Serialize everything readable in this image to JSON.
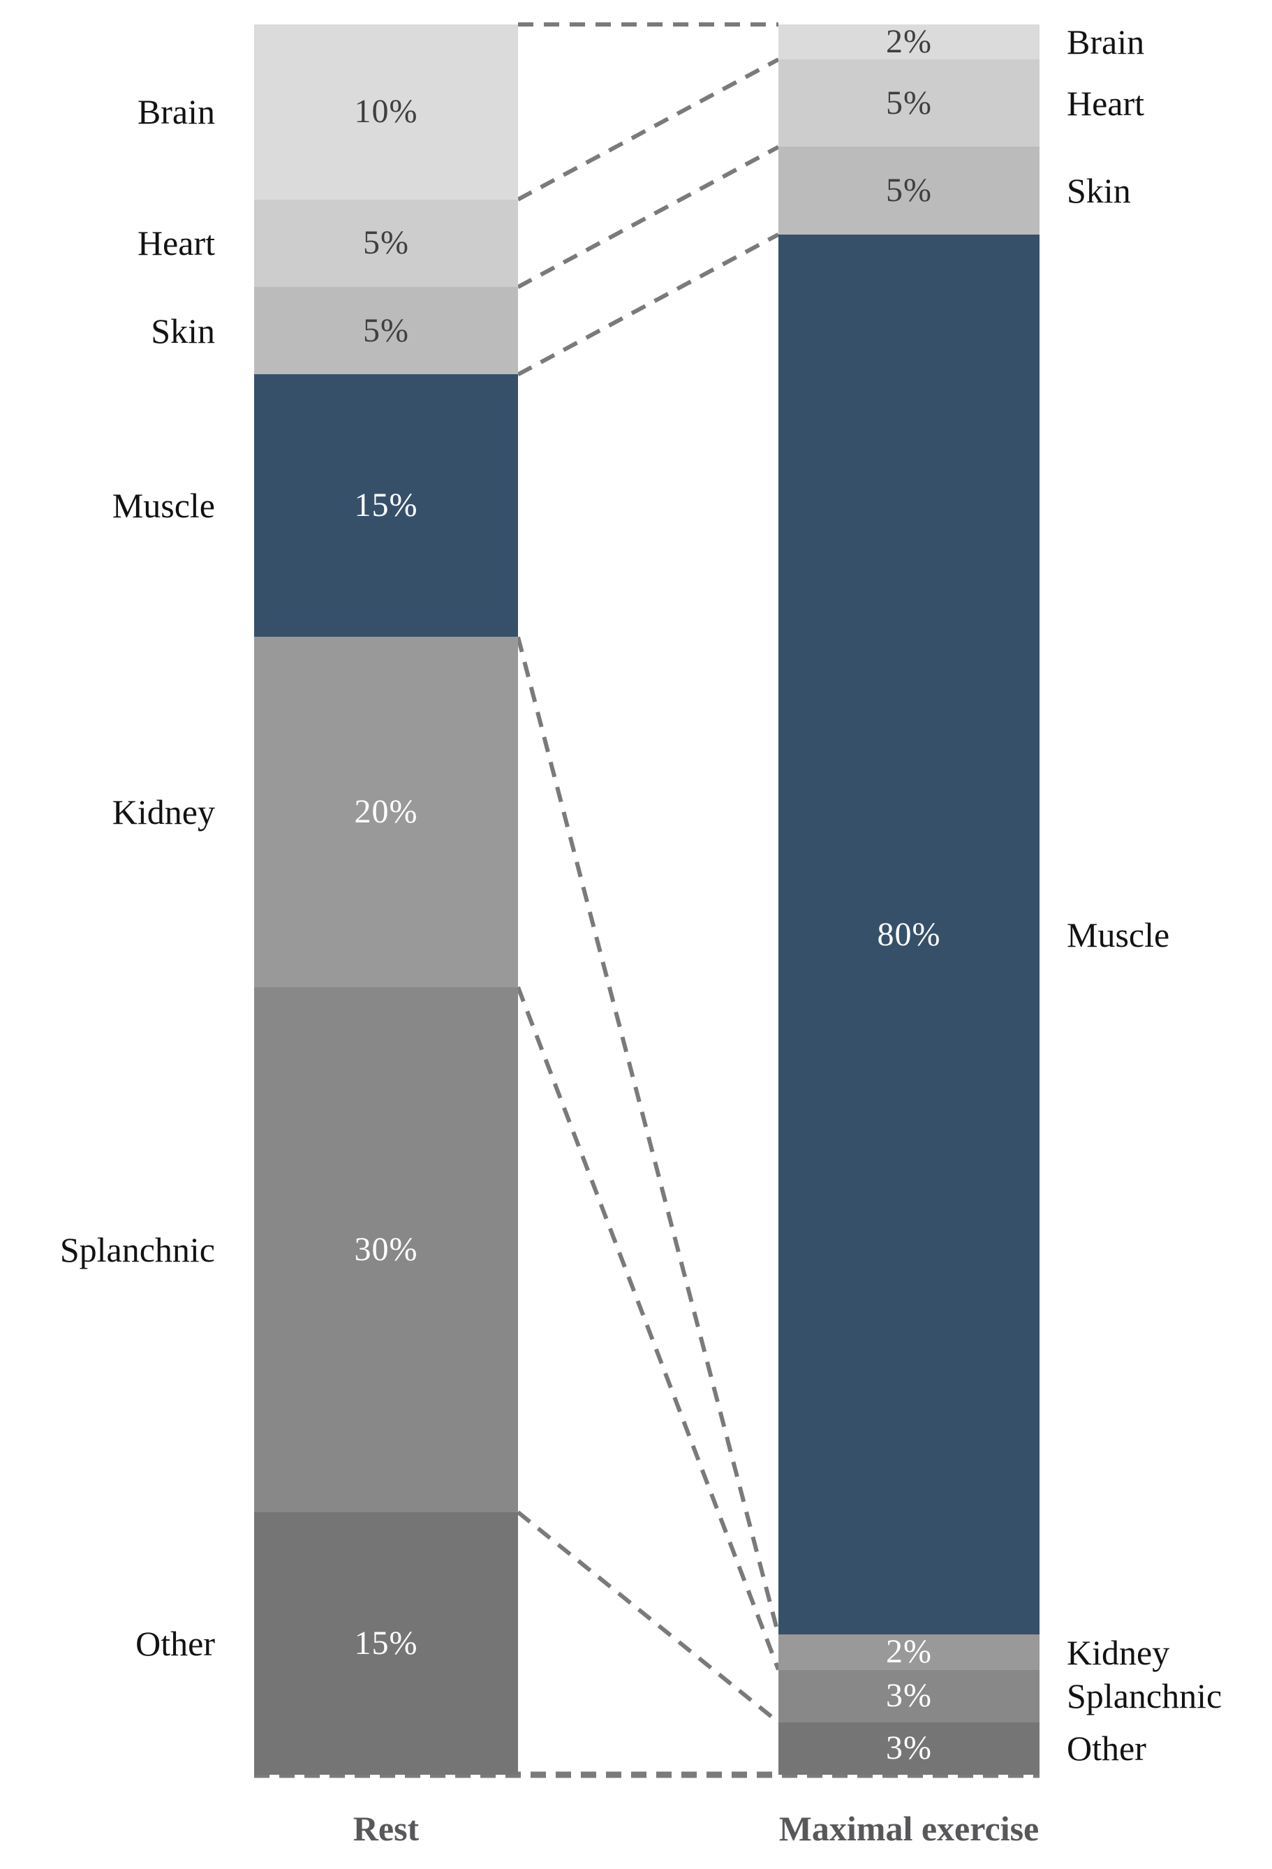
{
  "captions": {
    "rest": "Rest",
    "exercise": "Maximal exercise"
  },
  "chart_data": {
    "type": "bar",
    "variant": "paired 100% stacked columns with dashed flow connectors",
    "unit": "%",
    "ylim": [
      0,
      100
    ],
    "grid": false,
    "axes": "none",
    "categories": [
      "Brain",
      "Heart",
      "Skin",
      "Muscle",
      "Kidney",
      "Splanchnic",
      "Other"
    ],
    "series": [
      {
        "name": "Rest",
        "label_side": "left",
        "values": [
          10,
          5,
          5,
          15,
          20,
          30,
          15
        ],
        "value_labels": [
          "10%",
          "5%",
          "5%",
          "15%",
          "20%",
          "30%",
          "15%"
        ]
      },
      {
        "name": "Maximal exercise",
        "label_side": "right",
        "values": [
          2,
          5,
          5,
          80,
          2,
          3,
          3
        ],
        "value_labels": [
          "2%",
          "5%",
          "5%",
          "80%",
          "2%",
          "3%",
          "3%"
        ]
      }
    ],
    "segment_colors": [
      "#dbdbdb",
      "#cdcdcd",
      "#bbbbbb",
      "#375069",
      "#999999",
      "#888888",
      "#757575"
    ],
    "value_label_colors": [
      "#3f3f3f",
      "#3f3f3f",
      "#3f3f3f",
      "#ffffff",
      "#ffffff",
      "#ffffff",
      "#ffffff"
    ],
    "connector_color": "#7a7a7a",
    "connector_style": "dashed",
    "connectors": "dashed lines link matching segment boundaries between the two columns; horizontal dashed lines across the top gap and along the full bottom edge"
  }
}
